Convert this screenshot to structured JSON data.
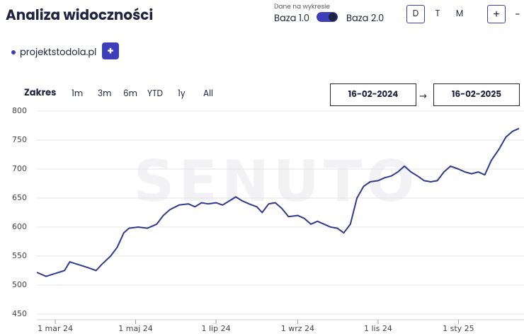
{
  "header": {
    "title": "Analiza widoczności",
    "toggle_label": "Dane na wykresie",
    "option_a": "Baza 1.0",
    "option_b": "Baza 2.0",
    "periods": [
      "D",
      "T",
      "M"
    ],
    "zoom_in": "+",
    "zoom_out": "-"
  },
  "project": {
    "add": "+"
  },
  "range": {
    "label": "Zakres",
    "options": [
      "1m",
      "3m",
      "6m",
      "YTD",
      "1y",
      "All"
    ],
    "from": "16-02-2024",
    "arrow": "→",
    "to": "16-02-2025"
  },
  "chart_data": {
    "type": "line",
    "watermark": "SENUTO",
    "x": [
      "2024-02-16",
      "2024-02-23",
      "2024-03-01",
      "2024-03-08",
      "2024-03-12",
      "2024-03-19",
      "2024-03-26",
      "2024-04-01",
      "2024-04-05",
      "2024-04-12",
      "2024-04-17",
      "2024-04-22",
      "2024-04-26",
      "2024-05-03",
      "2024-05-10",
      "2024-05-17",
      "2024-05-22",
      "2024-05-27",
      "2024-06-03",
      "2024-06-10",
      "2024-06-15",
      "2024-06-20",
      "2024-06-25",
      "2024-07-01",
      "2024-07-06",
      "2024-07-11",
      "2024-07-16",
      "2024-07-21",
      "2024-07-26",
      "2024-08-01",
      "2024-08-05",
      "2024-08-10",
      "2024-08-15",
      "2024-08-20",
      "2024-08-25",
      "2024-09-01",
      "2024-09-06",
      "2024-09-11",
      "2024-09-16",
      "2024-09-21",
      "2024-09-26",
      "2024-10-01",
      "2024-10-06",
      "2024-10-11",
      "2024-10-16",
      "2024-10-21",
      "2024-10-26",
      "2024-11-01",
      "2024-11-06",
      "2024-11-11",
      "2024-11-16",
      "2024-11-21",
      "2024-11-26",
      "2024-12-01",
      "2024-12-06",
      "2024-12-11",
      "2024-12-16",
      "2024-12-21",
      "2024-12-26",
      "2025-01-01",
      "2025-01-06",
      "2025-01-11",
      "2025-01-16",
      "2025-01-21",
      "2025-01-26",
      "2025-02-01",
      "2025-02-06",
      "2025-02-11",
      "2025-02-16"
    ],
    "series": [
      {
        "name": "projektstodola.pl",
        "color": "#2f3a8f",
        "values": [
          522,
          515,
          520,
          525,
          540,
          535,
          530,
          525,
          535,
          550,
          565,
          590,
          598,
          600,
          598,
          605,
          620,
          630,
          638,
          640,
          635,
          642,
          640,
          642,
          638,
          645,
          652,
          645,
          640,
          635,
          625,
          640,
          642,
          632,
          618,
          620,
          615,
          605,
          610,
          605,
          600,
          598,
          590,
          605,
          650,
          670,
          678,
          680,
          685,
          688,
          695,
          705,
          695,
          688,
          680,
          678,
          680,
          695,
          705,
          700,
          695,
          692,
          695,
          690,
          715,
          735,
          755,
          765,
          770
        ]
      }
    ],
    "xlim": [
      "2024-02-16",
      "2025-02-16"
    ],
    "xticks": [
      {
        "value": "2024-03-01",
        "label": "1 mar 24"
      },
      {
        "value": "2024-05-01",
        "label": "1 maj 24"
      },
      {
        "value": "2024-07-01",
        "label": "1 lip 24"
      },
      {
        "value": "2024-09-01",
        "label": "1 wrz 24"
      },
      {
        "value": "2024-11-01",
        "label": "1 lis 24"
      },
      {
        "value": "2025-01-01",
        "label": "1 sty 25"
      }
    ],
    "ylim": [
      450,
      800
    ],
    "yticks": [
      450,
      500,
      550,
      600,
      650,
      700,
      750,
      800
    ],
    "grid": true
  }
}
